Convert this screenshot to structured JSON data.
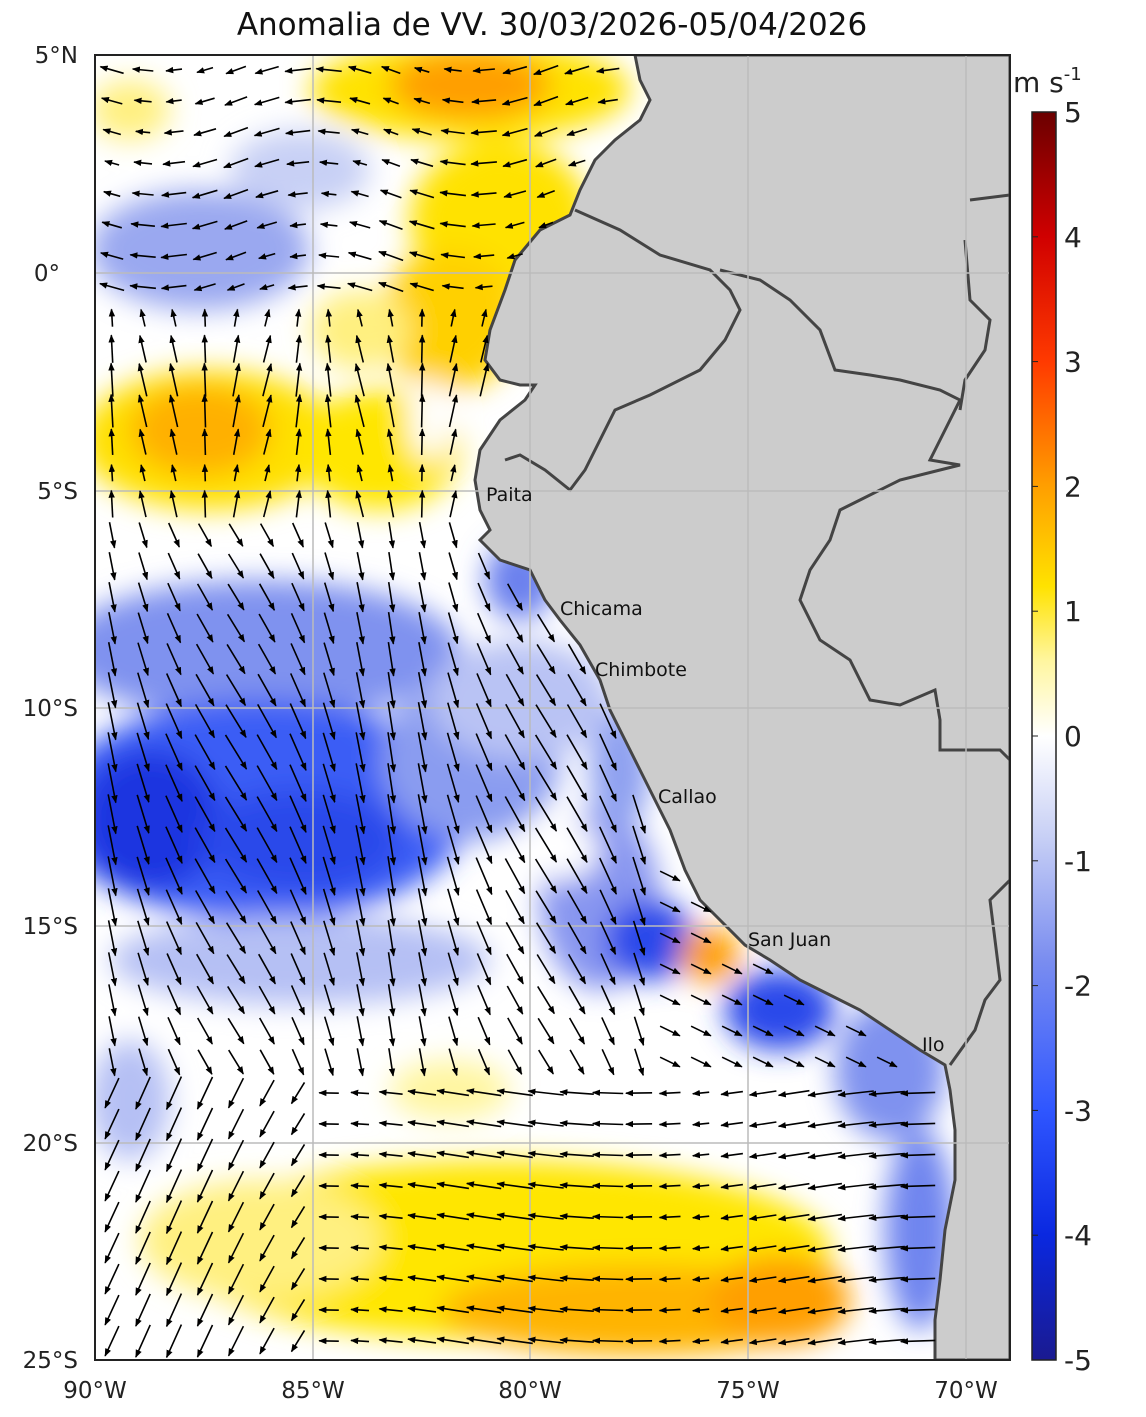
{
  "title": "Anomalia de VV. 30/03/2026-05/04/2026",
  "colorbar": {
    "unit": "m s",
    "unit_exp": "-1",
    "ticks": [
      "5",
      "4",
      "3",
      "2",
      "1",
      "0",
      "-1",
      "-2",
      "-3",
      "-4",
      "-5"
    ],
    "range": [
      -5,
      5
    ],
    "colors": [
      "#1a1a90",
      "#0a28e0",
      "#2f56ff",
      "#7a8df0",
      "#c8d0f5",
      "#ffffff",
      "#fff6a0",
      "#ffe200",
      "#ff9f00",
      "#ff3a00",
      "#d00000",
      "#6b0000"
    ]
  },
  "axes": {
    "lat_labels": [
      "5°N",
      "0°",
      "5°S",
      "10°S",
      "15°S",
      "20°S",
      "25°S"
    ],
    "lon_labels": [
      "90°W",
      "85°W",
      "80°W",
      "75°W",
      "70°W"
    ],
    "lat_range": [
      -25,
      5
    ],
    "lon_range": [
      -90,
      -69
    ]
  },
  "cities": [
    {
      "name": "Paita",
      "lon": -81.1,
      "lat": -5.1
    },
    {
      "name": "Chicama",
      "lon": -79.4,
      "lat": -7.8
    },
    {
      "name": "Chimbote",
      "lon": -78.6,
      "lat": -9.2
    },
    {
      "name": "Callao",
      "lon": -77.2,
      "lat": -12.1
    },
    {
      "name": "San Juan",
      "lon": -75.1,
      "lat": -15.3
    },
    {
      "name": "Ilo",
      "lon": -71.3,
      "lat": -17.6
    }
  ],
  "colors": {
    "land": "#cccccc",
    "border": "#444444",
    "grid": "#bbbbbb",
    "arrow": "#000000"
  }
}
